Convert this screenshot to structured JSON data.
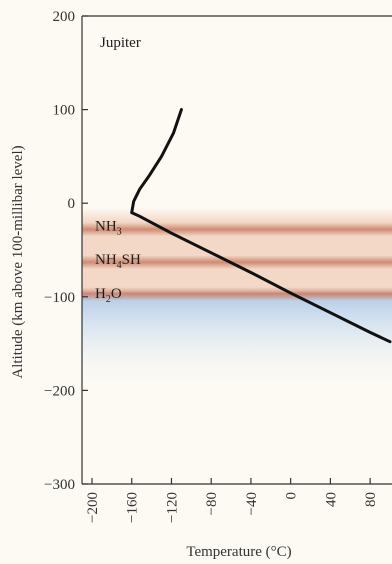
{
  "chart_data": {
    "type": "line",
    "title": "Jupiter",
    "xlabel": "Temperature (°C)",
    "ylabel": "Altitude (km above 100-millibar level)",
    "xlim": [
      -200,
      100
    ],
    "ylim": [
      -300,
      200
    ],
    "xticks": [
      -200,
      -160,
      -120,
      -80,
      -40,
      0,
      40,
      80
    ],
    "yticks": [
      200,
      100,
      0,
      -100,
      -200,
      -300
    ],
    "xtick_labels": [
      "−200",
      "−160",
      "−120",
      "−80",
      "−40",
      "0",
      "40",
      "80"
    ],
    "ytick_labels": [
      "200",
      "100",
      "0",
      "−100",
      "−200",
      "−300"
    ],
    "grid": false,
    "series": [
      {
        "x": [
          -110,
          -118,
          -130,
          -142,
          -152,
          -158,
          -160,
          -152,
          -120,
          -80,
          -40,
          0,
          40,
          80,
          100
        ],
        "y": [
          100,
          75,
          50,
          30,
          15,
          2,
          -10,
          -14,
          -32,
          -53,
          -74,
          -96,
          -117,
          -138,
          -148
        ]
      }
    ],
    "cloud_layers": [
      {
        "label": "NH3",
        "base": "NH",
        "subscript": "3",
        "rest": "",
        "altitude": -28,
        "color": "#c87e66"
      },
      {
        "label": "NH4SH",
        "base": "NH",
        "subscript": "4",
        "rest": "SH",
        "altitude": -63,
        "color": "#c87e66"
      },
      {
        "label": "H2O",
        "base": "H",
        "subscript": "2",
        "rest": "O",
        "altitude": -97,
        "color": "#c87e66"
      }
    ],
    "colors": {
      "line": "#111111",
      "cloud": "#c87e66",
      "haze_blue": "#a9c6e6",
      "axis": "#333333"
    }
  }
}
